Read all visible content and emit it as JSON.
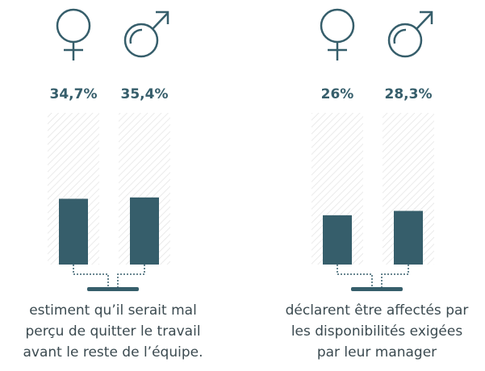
{
  "chart_data": [
    {
      "type": "bar",
      "color": "#365e6b",
      "values": [
        34.7,
        35.4
      ],
      "value_labels": [
        "34,7%",
        "35,4%"
      ],
      "caption": [
        "estiment qu’il serait mal",
        "perçu de quitter le travail",
        "avant le reste de l’équipe."
      ]
    },
    {
      "type": "bar",
      "color": "#365e6b",
      "values": [
        26,
        28.3
      ],
      "value_labels": [
        "26%",
        "28,3%"
      ],
      "caption": [
        "déclarent être affectés par",
        "les disponibilités exigées",
        "par leur manager"
      ]
    }
  ]
}
